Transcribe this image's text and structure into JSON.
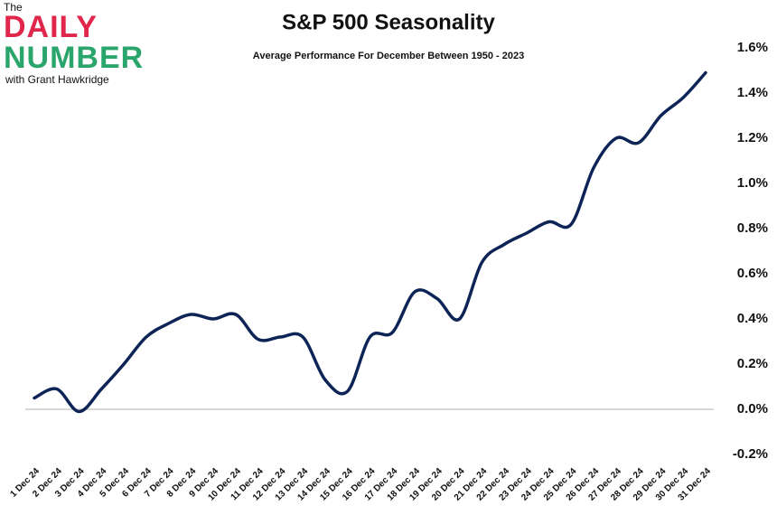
{
  "logo": {
    "top": "The",
    "line1": "DAILY",
    "line2": "NUMBER",
    "byline": "with Grant Hawkridge"
  },
  "chart_data": {
    "type": "line",
    "title": "S&P 500 Seasonality",
    "subtitle": "Average Performance For December Between 1950 - 2023",
    "categories": [
      "1 Dec 24",
      "2 Dec 24",
      "3 Dec 24",
      "4 Dec 24",
      "5 Dec 24",
      "6 Dec 24",
      "7 Dec 24",
      "8 Dec 24",
      "9 Dec 24",
      "10 Dec 24",
      "11 Dec 24",
      "12 Dec 24",
      "13 Dec 24",
      "14 Dec 24",
      "15 Dec 24",
      "16 Dec 24",
      "17 Dec 24",
      "18 Dec 24",
      "19 Dec 24",
      "20 Dec 24",
      "21 Dec 24",
      "22 Dec 24",
      "23 Dec 24",
      "24 Dec 24",
      "25 Dec 24",
      "26 Dec 24",
      "27 Dec 24",
      "28 Dec 24",
      "29 Dec 24",
      "30 Dec 24",
      "31 Dec 24"
    ],
    "values": [
      0.05,
      0.09,
      -0.01,
      0.09,
      0.2,
      0.32,
      0.38,
      0.42,
      0.4,
      0.42,
      0.31,
      0.32,
      0.32,
      0.13,
      0.08,
      0.32,
      0.34,
      0.52,
      0.49,
      0.4,
      0.65,
      0.73,
      0.78,
      0.83,
      0.82,
      1.07,
      1.2,
      1.18,
      1.3,
      1.38,
      1.49
    ],
    "color": "#0d2456",
    "ylim": [
      -0.2,
      1.6
    ],
    "yticks": [
      {
        "value": 1.6,
        "label": "1.6%"
      },
      {
        "value": 1.4,
        "label": "1.4%"
      },
      {
        "value": 1.2,
        "label": "1.2%"
      },
      {
        "value": 1.0,
        "label": "1.0%"
      },
      {
        "value": 0.8,
        "label": "0.8%"
      },
      {
        "value": 0.6,
        "label": "0.6%"
      },
      {
        "value": 0.4,
        "label": "0.4%"
      },
      {
        "value": 0.2,
        "label": "0.2%"
      },
      {
        "value": 0,
        "label": "0.0%"
      },
      {
        "value": -0.2,
        "label": "-0.2%"
      }
    ],
    "zero_line": true
  }
}
